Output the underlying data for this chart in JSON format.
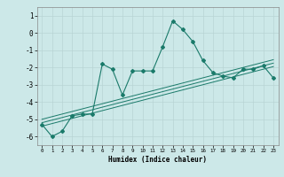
{
  "x_data": [
    0,
    1,
    2,
    3,
    4,
    5,
    6,
    7,
    8,
    9,
    10,
    11,
    12,
    13,
    14,
    15,
    16,
    17,
    18,
    19,
    20,
    21,
    22,
    23
  ],
  "y_main": [
    -5.3,
    -6.0,
    -5.7,
    -4.8,
    -4.7,
    -4.7,
    -1.8,
    -2.1,
    -3.6,
    -2.2,
    -2.2,
    -2.2,
    -0.8,
    0.7,
    0.2,
    -0.5,
    -1.6,
    -2.3,
    -2.5,
    -2.6,
    -2.1,
    -2.1,
    -1.9,
    -2.6
  ],
  "y_reg1": [
    -5.0,
    -4.85,
    -4.7,
    -4.55,
    -4.4,
    -4.25,
    -4.1,
    -3.95,
    -3.8,
    -3.65,
    -3.5,
    -3.35,
    -3.2,
    -3.05,
    -2.9,
    -2.75,
    -2.6,
    -2.45,
    -2.3,
    -2.15,
    -2.0,
    -1.85,
    -1.7,
    -1.55
  ],
  "y_reg2": [
    -5.4,
    -5.25,
    -5.1,
    -4.95,
    -4.8,
    -4.65,
    -4.5,
    -4.35,
    -4.2,
    -4.05,
    -3.9,
    -3.75,
    -3.6,
    -3.45,
    -3.3,
    -3.15,
    -3.0,
    -2.85,
    -2.7,
    -2.55,
    -2.4,
    -2.25,
    -2.1,
    -1.95
  ],
  "y_reg3": [
    -5.2,
    -5.05,
    -4.9,
    -4.75,
    -4.6,
    -4.45,
    -4.3,
    -4.15,
    -4.0,
    -3.85,
    -3.7,
    -3.55,
    -3.4,
    -3.25,
    -3.1,
    -2.95,
    -2.8,
    -2.65,
    -2.5,
    -2.35,
    -2.2,
    -2.05,
    -1.9,
    -1.75
  ],
  "line_color": "#1a7a6a",
  "bg_color": "#cce8e8",
  "grid_color": "#b8d4d4",
  "xlabel": "Humidex (Indice chaleur)",
  "ylim": [
    -6.5,
    1.5
  ],
  "xlim": [
    -0.5,
    23.5
  ],
  "yticks": [
    1,
    0,
    -1,
    -2,
    -3,
    -4,
    -5,
    -6
  ],
  "xticks": [
    0,
    1,
    2,
    3,
    4,
    5,
    6,
    7,
    8,
    9,
    10,
    11,
    12,
    13,
    14,
    15,
    16,
    17,
    18,
    19,
    20,
    21,
    22,
    23
  ]
}
